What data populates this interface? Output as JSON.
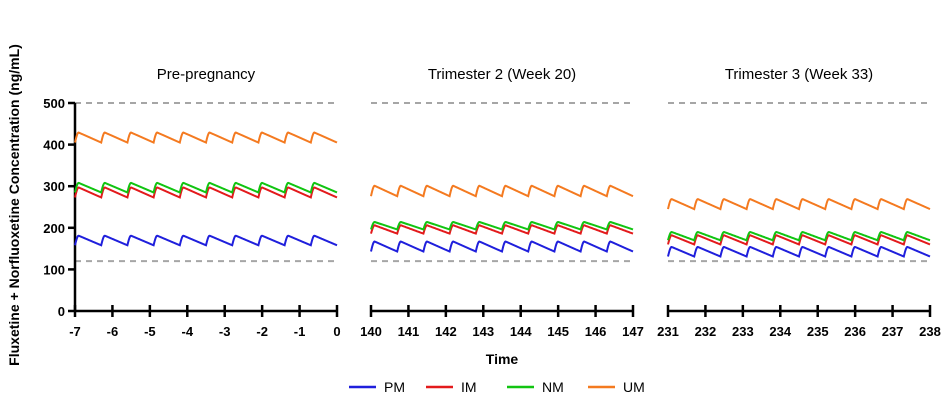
{
  "chart_data": {
    "type": "line",
    "ylabel": "Fluxetine + Norfluoxetine Concentration (ng/mL)",
    "xlabel": "Time",
    "ylim": [
      0,
      500
    ],
    "yticks": [
      0,
      100,
      200,
      300,
      400,
      500
    ],
    "reference_lines": [
      500,
      120
    ],
    "reference_line_color": "#a6a6a6",
    "dosing_interval": 0.7,
    "panels": [
      {
        "title": "Pre-pregnancy",
        "xlim": [
          -7,
          0
        ],
        "xticks": [
          -7,
          -6,
          -5,
          -4,
          -3,
          -2,
          -1,
          0
        ],
        "show_y_axis": true,
        "series": [
          {
            "name": "PM",
            "trough": 158,
            "peak": 181
          },
          {
            "name": "IM",
            "trough": 273,
            "peak": 297
          },
          {
            "name": "NM",
            "trough": 285,
            "peak": 308
          },
          {
            "name": "UM",
            "trough": 405,
            "peak": 429
          }
        ]
      },
      {
        "title": "Trimester 2 (Week 20)",
        "xlim": [
          140,
          147
        ],
        "xticks": [
          140,
          141,
          142,
          143,
          144,
          145,
          146,
          147
        ],
        "show_y_axis": false,
        "series": [
          {
            "name": "PM",
            "trough": 143,
            "peak": 167
          },
          {
            "name": "IM",
            "trough": 186,
            "peak": 206
          },
          {
            "name": "NM",
            "trough": 196,
            "peak": 214
          },
          {
            "name": "UM",
            "trough": 276,
            "peak": 301
          }
        ]
      },
      {
        "title": "Trimester 3 (Week 33)",
        "xlim": [
          231,
          238
        ],
        "xticks": [
          231,
          232,
          233,
          234,
          235,
          236,
          237,
          238
        ],
        "show_y_axis": false,
        "series": [
          {
            "name": "PM",
            "trough": 131,
            "peak": 154
          },
          {
            "name": "IM",
            "trough": 160,
            "peak": 182
          },
          {
            "name": "NM",
            "trough": 170,
            "peak": 190
          },
          {
            "name": "UM",
            "trough": 245,
            "peak": 269
          }
        ]
      }
    ],
    "legend": [
      {
        "name": "PM",
        "color": "#1f1fdc"
      },
      {
        "name": "IM",
        "color": "#e31a1c"
      },
      {
        "name": "NM",
        "color": "#11c411"
      },
      {
        "name": "UM",
        "color": "#f47a20"
      }
    ],
    "legend_position": "bottom"
  }
}
